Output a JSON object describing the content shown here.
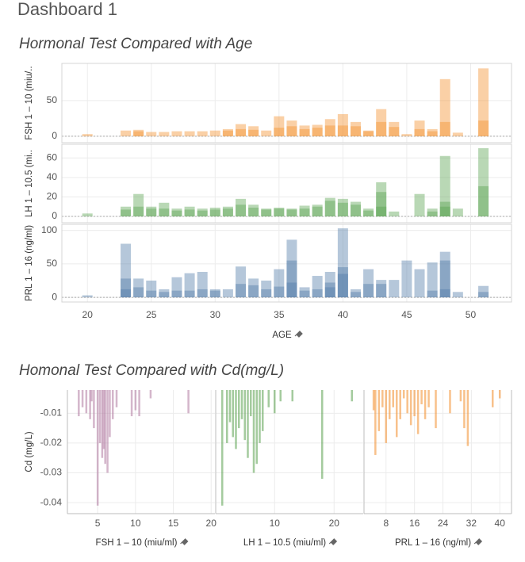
{
  "title": "Dashboard 1",
  "chart_data": [
    {
      "type": "bar",
      "title": "Hormonal Test Compared with Age",
      "xlabel": "AGE",
      "xlim": [
        18.0,
        53.2
      ],
      "xticks": [
        20,
        25,
        30,
        35,
        40,
        45,
        50
      ],
      "grid": true,
      "panels": [
        {
          "ylabel": "FSH 1 – 10 (miu/..",
          "color": "#f28e2b",
          "ylim": [
            -9,
            102
          ],
          "yticks": [
            0,
            50
          ],
          "x": [
            20,
            23,
            24,
            24,
            25,
            26,
            27,
            28,
            29,
            30,
            31,
            31,
            32,
            32,
            33,
            33,
            34,
            35,
            35,
            36,
            36,
            37,
            37,
            38,
            38,
            39,
            39,
            40,
            40,
            41,
            41,
            42,
            42,
            43,
            43,
            44,
            44,
            45,
            46,
            46,
            47,
            47,
            48,
            48,
            49,
            51,
            51
          ],
          "values": [
            3,
            8,
            9,
            7,
            6,
            6,
            7,
            7,
            7,
            8,
            10,
            8,
            17,
            10,
            14,
            9,
            8,
            28,
            12,
            22,
            14,
            15,
            10,
            16,
            12,
            24,
            15,
            31,
            15,
            20,
            14,
            8,
            7,
            38,
            20,
            20,
            13,
            3,
            22,
            10,
            10,
            7,
            80,
            20,
            5,
            95,
            22
          ]
        },
        {
          "ylabel": "LH 1 – 10.5 (mi..",
          "color": "#59a14f",
          "ylim": [
            -6.5,
            74
          ],
          "yticks": [
            0,
            20,
            40,
            60
          ],
          "x": [
            20,
            23,
            23,
            24,
            24,
            25,
            25,
            26,
            26,
            27,
            27,
            28,
            28,
            29,
            29,
            30,
            30,
            31,
            31,
            32,
            32,
            33,
            33,
            34,
            34,
            35,
            35,
            36,
            36,
            37,
            37,
            38,
            38,
            39,
            39,
            40,
            40,
            41,
            41,
            42,
            42,
            43,
            43,
            43,
            44,
            46,
            47,
            47,
            48,
            48,
            48,
            49,
            51,
            51
          ],
          "values": [
            3,
            10,
            7,
            23,
            10,
            10,
            8,
            14,
            8,
            8,
            6,
            10,
            7,
            8,
            6,
            9,
            7,
            10,
            8,
            18,
            12,
            12,
            9,
            8,
            7,
            9,
            8,
            8,
            7,
            11,
            8,
            12,
            10,
            19,
            16,
            18,
            14,
            15,
            12,
            8,
            6,
            35,
            25,
            10,
            5,
            23,
            8,
            5,
            62,
            15,
            10,
            8,
            70,
            31
          ]
        },
        {
          "ylabel": "PRL 1 – 16 (ng/ml)",
          "color": "#4e79a7",
          "ylim": [
            -7,
            109
          ],
          "yticks": [
            0,
            50,
            100
          ],
          "x": [
            20,
            23,
            23,
            23,
            24,
            24,
            25,
            25,
            26,
            26,
            27,
            27,
            28,
            28,
            29,
            29,
            30,
            30,
            31,
            32,
            32,
            33,
            33,
            34,
            34,
            35,
            35,
            36,
            36,
            36,
            37,
            37,
            38,
            38,
            39,
            39,
            39,
            40,
            40,
            40,
            41,
            41,
            42,
            42,
            43,
            43,
            44,
            45,
            46,
            47,
            47,
            48,
            48,
            48,
            49,
            51,
            51
          ],
          "values": [
            3,
            80,
            28,
            12,
            28,
            15,
            25,
            10,
            12,
            8,
            30,
            10,
            36,
            10,
            38,
            12,
            12,
            10,
            12,
            46,
            20,
            28,
            18,
            25,
            12,
            42,
            16,
            86,
            55,
            22,
            15,
            10,
            32,
            12,
            38,
            22,
            15,
            103,
            45,
            35,
            12,
            8,
            42,
            20,
            26,
            20,
            26,
            55,
            42,
            52,
            10,
            68,
            55,
            12,
            8,
            17,
            8
          ]
        }
      ]
    },
    {
      "type": "bar",
      "title": "Homonal Test Compared with Cd(mg/L)",
      "ylabel": "Cd (mg/L)",
      "ylim": [
        -0.0437,
        -0.0022
      ],
      "yticks": [
        -0.01,
        -0.02,
        -0.03,
        -0.04
      ],
      "grid": true,
      "panels": [
        {
          "xlabel": "FSH 1 – 10 (miu/ml)",
          "color": "#b07aa1",
          "xlim": [
            1,
            20.5
          ],
          "xticks": [
            5,
            10,
            15,
            20
          ],
          "x": [
            2.5,
            3,
            4,
            4.5,
            5,
            5.3,
            5.6,
            6,
            6.3,
            6.6,
            7,
            7.5,
            9.5,
            10,
            10.5,
            12,
            17,
            5.8,
            4.2,
            3.5
          ],
          "values": [
            -0.011,
            -0.008,
            -0.012,
            -0.015,
            -0.041,
            -0.02,
            -0.025,
            -0.027,
            -0.03,
            -0.018,
            -0.012,
            -0.008,
            -0.011,
            -0.009,
            -0.011,
            -0.005,
            -0.01,
            -0.022,
            -0.006,
            -0.01
          ]
        },
        {
          "xlabel": "LH 1 – 10.5 (miu/ml)",
          "color": "#59a14f",
          "xlim": [
            0.1,
            24.9
          ],
          "xticks": [
            10,
            20
          ],
          "x": [
            1.2,
            2,
            2.5,
            3,
            3.5,
            4,
            4.5,
            5,
            6,
            6.5,
            7,
            7.5,
            8,
            9,
            10,
            11,
            13,
            18,
            23,
            5.5
          ],
          "values": [
            -0.041,
            -0.02,
            -0.013,
            -0.018,
            -0.022,
            -0.015,
            -0.012,
            -0.019,
            -0.011,
            -0.03,
            -0.027,
            -0.02,
            -0.016,
            -0.008,
            -0.01,
            -0.006,
            -0.006,
            -0.032,
            -0.006,
            -0.025
          ]
        },
        {
          "xlabel": "PRL 1 – 16 (ng/ml)",
          "color": "#f28e2b",
          "xlim": [
            1.8,
            43.3
          ],
          "xticks": [
            8,
            16,
            24,
            32,
            40
          ],
          "x": [
            4.5,
            5,
            6,
            7,
            8,
            9,
            10,
            11,
            12,
            13,
            14,
            15,
            16,
            17,
            18,
            19,
            20,
            22,
            26,
            29,
            30,
            31,
            38,
            40
          ],
          "values": [
            -0.009,
            -0.024,
            -0.016,
            -0.008,
            -0.02,
            -0.012,
            -0.008,
            -0.018,
            -0.012,
            -0.005,
            -0.01,
            -0.014,
            -0.011,
            -0.017,
            -0.007,
            -0.012,
            -0.008,
            -0.015,
            -0.01,
            -0.006,
            -0.015,
            -0.021,
            -0.008,
            -0.005
          ]
        }
      ]
    }
  ]
}
